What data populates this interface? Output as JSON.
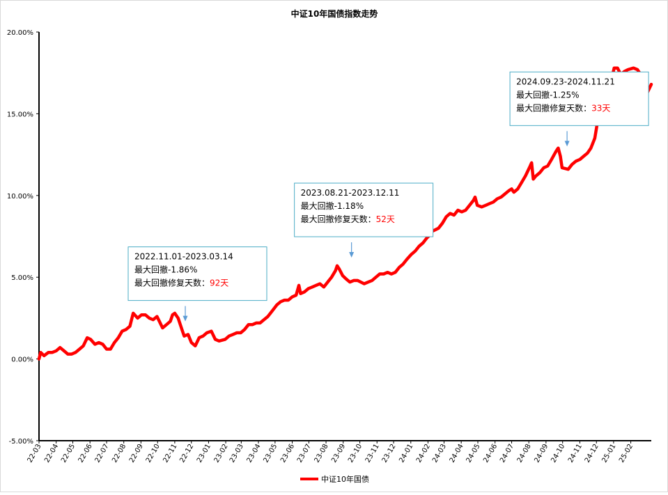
{
  "chart_data": {
    "type": "line",
    "title": "中证10年国债指数走势",
    "xlabel": "",
    "ylabel": "",
    "ylim": [
      -0.05,
      0.2
    ],
    "y_ticks": [
      "-5.00%",
      "0.00%",
      "5.00%",
      "10.00%",
      "15.00%",
      "20.00%"
    ],
    "y_tick_values": [
      -0.05,
      0.0,
      0.05,
      0.1,
      0.15,
      0.2
    ],
    "x_ticks": [
      "22-03",
      "22-04",
      "22-05",
      "22-06",
      "22-07",
      "22-08",
      "22-09",
      "22-10",
      "22-11",
      "22-12",
      "23-01",
      "23-02",
      "23-03",
      "23-04",
      "23-05",
      "23-06",
      "23-07",
      "23-08",
      "23-09",
      "23-10",
      "23-11",
      "23-12",
      "24-01",
      "24-02",
      "24-03",
      "24-04",
      "24-05",
      "24-06",
      "24-07",
      "24-08",
      "24-09",
      "24-10",
      "24-11",
      "24-12",
      "25-01",
      "25-02"
    ],
    "x_start": "2022-03-01",
    "x_end": "2025-03-10",
    "grid": false,
    "legend_position": "bottom",
    "series": [
      {
        "name": "中证10年国债",
        "color": "#ff0000",
        "points": [
          [
            "2022-03-01",
            0.0
          ],
          [
            "2022-03-04",
            0.004
          ],
          [
            "2022-03-10",
            0.002
          ],
          [
            "2022-03-18",
            0.004
          ],
          [
            "2022-03-25",
            0.004
          ],
          [
            "2022-04-01",
            0.005
          ],
          [
            "2022-04-08",
            0.007
          ],
          [
            "2022-04-15",
            0.005
          ],
          [
            "2022-04-22",
            0.003
          ],
          [
            "2022-04-29",
            0.003
          ],
          [
            "2022-05-06",
            0.004
          ],
          [
            "2022-05-13",
            0.006
          ],
          [
            "2022-05-20",
            0.008
          ],
          [
            "2022-05-27",
            0.013
          ],
          [
            "2022-06-02",
            0.012
          ],
          [
            "2022-06-10",
            0.009
          ],
          [
            "2022-06-17",
            0.01
          ],
          [
            "2022-06-24",
            0.009
          ],
          [
            "2022-07-01",
            0.006
          ],
          [
            "2022-07-08",
            0.006
          ],
          [
            "2022-07-15",
            0.01
          ],
          [
            "2022-07-22",
            0.013
          ],
          [
            "2022-07-29",
            0.017
          ],
          [
            "2022-08-05",
            0.018
          ],
          [
            "2022-08-12",
            0.02
          ],
          [
            "2022-08-18",
            0.028
          ],
          [
            "2022-08-26",
            0.025
          ],
          [
            "2022-09-02",
            0.027
          ],
          [
            "2022-09-09",
            0.027
          ],
          [
            "2022-09-16",
            0.025
          ],
          [
            "2022-09-23",
            0.024
          ],
          [
            "2022-09-30",
            0.026
          ],
          [
            "2022-10-10",
            0.019
          ],
          [
            "2022-10-17",
            0.021
          ],
          [
            "2022-10-24",
            0.023
          ],
          [
            "2022-10-28",
            0.027
          ],
          [
            "2022-11-01",
            0.028
          ],
          [
            "2022-11-07",
            0.025
          ],
          [
            "2022-11-14",
            0.018
          ],
          [
            "2022-11-18",
            0.014
          ],
          [
            "2022-11-25",
            0.015
          ],
          [
            "2022-12-01",
            0.01
          ],
          [
            "2022-12-08",
            0.008
          ],
          [
            "2022-12-15",
            0.013
          ],
          [
            "2022-12-22",
            0.014
          ],
          [
            "2022-12-29",
            0.016
          ],
          [
            "2023-01-06",
            0.017
          ],
          [
            "2023-01-13",
            0.012
          ],
          [
            "2023-01-20",
            0.011
          ],
          [
            "2023-01-31",
            0.012
          ],
          [
            "2023-02-07",
            0.014
          ],
          [
            "2023-02-14",
            0.015
          ],
          [
            "2023-02-21",
            0.016
          ],
          [
            "2023-02-28",
            0.016
          ],
          [
            "2023-03-07",
            0.018
          ],
          [
            "2023-03-14",
            0.021
          ],
          [
            "2023-03-21",
            0.021
          ],
          [
            "2023-03-28",
            0.022
          ],
          [
            "2023-04-04",
            0.022
          ],
          [
            "2023-04-11",
            0.024
          ],
          [
            "2023-04-18",
            0.026
          ],
          [
            "2023-04-25",
            0.029
          ],
          [
            "2023-05-04",
            0.033
          ],
          [
            "2023-05-11",
            0.035
          ],
          [
            "2023-05-18",
            0.036
          ],
          [
            "2023-05-25",
            0.036
          ],
          [
            "2023-06-01",
            0.038
          ],
          [
            "2023-06-08",
            0.039
          ],
          [
            "2023-06-13",
            0.045
          ],
          [
            "2023-06-16",
            0.04
          ],
          [
            "2023-06-23",
            0.041
          ],
          [
            "2023-06-30",
            0.043
          ],
          [
            "2023-07-07",
            0.044
          ],
          [
            "2023-07-14",
            0.045
          ],
          [
            "2023-07-21",
            0.046
          ],
          [
            "2023-07-28",
            0.044
          ],
          [
            "2023-08-04",
            0.047
          ],
          [
            "2023-08-11",
            0.05
          ],
          [
            "2023-08-18",
            0.054
          ],
          [
            "2023-08-21",
            0.057
          ],
          [
            "2023-08-25",
            0.055
          ],
          [
            "2023-08-31",
            0.051
          ],
          [
            "2023-09-06",
            0.049
          ],
          [
            "2023-09-13",
            0.047
          ],
          [
            "2023-09-20",
            0.048
          ],
          [
            "2023-09-27",
            0.048
          ],
          [
            "2023-10-09",
            0.046
          ],
          [
            "2023-10-16",
            0.047
          ],
          [
            "2023-10-23",
            0.048
          ],
          [
            "2023-10-30",
            0.05
          ],
          [
            "2023-11-06",
            0.052
          ],
          [
            "2023-11-13",
            0.052
          ],
          [
            "2023-11-20",
            0.053
          ],
          [
            "2023-11-27",
            0.052
          ],
          [
            "2023-12-04",
            0.053
          ],
          [
            "2023-12-11",
            0.056
          ],
          [
            "2023-12-18",
            0.058
          ],
          [
            "2023-12-25",
            0.061
          ],
          [
            "2024-01-02",
            0.064
          ],
          [
            "2024-01-09",
            0.066
          ],
          [
            "2024-01-16",
            0.069
          ],
          [
            "2024-01-23",
            0.071
          ],
          [
            "2024-01-30",
            0.074
          ],
          [
            "2024-02-05",
            0.076
          ],
          [
            "2024-02-08",
            0.078
          ],
          [
            "2024-02-20",
            0.08
          ],
          [
            "2024-02-27",
            0.083
          ],
          [
            "2024-03-05",
            0.087
          ],
          [
            "2024-03-12",
            0.089
          ],
          [
            "2024-03-19",
            0.088
          ],
          [
            "2024-03-26",
            0.091
          ],
          [
            "2024-04-02",
            0.09
          ],
          [
            "2024-04-09",
            0.091
          ],
          [
            "2024-04-16",
            0.094
          ],
          [
            "2024-04-23",
            0.097
          ],
          [
            "2024-04-26",
            0.099
          ],
          [
            "2024-04-30",
            0.094
          ],
          [
            "2024-05-08",
            0.093
          ],
          [
            "2024-05-15",
            0.094
          ],
          [
            "2024-05-22",
            0.095
          ],
          [
            "2024-05-29",
            0.096
          ],
          [
            "2024-06-05",
            0.098
          ],
          [
            "2024-06-12",
            0.099
          ],
          [
            "2024-06-19",
            0.101
          ],
          [
            "2024-06-26",
            0.103
          ],
          [
            "2024-07-01",
            0.104
          ],
          [
            "2024-07-05",
            0.102
          ],
          [
            "2024-07-12",
            0.104
          ],
          [
            "2024-07-19",
            0.108
          ],
          [
            "2024-07-26",
            0.112
          ],
          [
            "2024-08-02",
            0.117
          ],
          [
            "2024-08-06",
            0.12
          ],
          [
            "2024-08-09",
            0.11
          ],
          [
            "2024-08-14",
            0.112
          ],
          [
            "2024-08-21",
            0.114
          ],
          [
            "2024-08-28",
            0.117
          ],
          [
            "2024-09-04",
            0.118
          ],
          [
            "2024-09-11",
            0.122
          ],
          [
            "2024-09-19",
            0.127
          ],
          [
            "2024-09-23",
            0.129
          ],
          [
            "2024-09-27",
            0.124
          ],
          [
            "2024-09-30",
            0.117
          ],
          [
            "2024-10-11",
            0.116
          ],
          [
            "2024-10-18",
            0.119
          ],
          [
            "2024-10-25",
            0.121
          ],
          [
            "2024-11-01",
            0.122
          ],
          [
            "2024-11-08",
            0.124
          ],
          [
            "2024-11-15",
            0.126
          ],
          [
            "2024-11-21",
            0.129
          ],
          [
            "2024-11-28",
            0.135
          ],
          [
            "2024-12-03",
            0.145
          ],
          [
            "2024-12-06",
            0.152
          ],
          [
            "2024-12-10",
            0.16
          ],
          [
            "2024-12-16",
            0.165
          ],
          [
            "2024-12-23",
            0.167
          ],
          [
            "2024-12-27",
            0.169
          ],
          [
            "2025-01-02",
            0.178
          ],
          [
            "2025-01-08",
            0.178
          ],
          [
            "2025-01-14",
            0.174
          ],
          [
            "2025-01-21",
            0.176
          ],
          [
            "2025-01-27",
            0.177
          ],
          [
            "2025-02-06",
            0.178
          ],
          [
            "2025-02-13",
            0.177
          ],
          [
            "2025-02-19",
            0.174
          ],
          [
            "2025-02-26",
            0.167
          ],
          [
            "2025-03-03",
            0.163
          ],
          [
            "2025-03-10",
            0.168
          ]
        ]
      }
    ],
    "annotations": [
      {
        "period": "2022.11.01-2023.03.14",
        "drawdown_label": "最大回撤-1.86%",
        "repair_label": "最大回撤修复天数：",
        "repair_days": "92天",
        "arrow_date": "2022-11-20",
        "arrow_value": 0.023
      },
      {
        "period": "2023.08.21-2023.12.11",
        "drawdown_label": "最大回撤-1.18%",
        "repair_label": "最大回撤修复天数：",
        "repair_days": "52天",
        "arrow_date": "2023-09-16",
        "arrow_value": 0.062
      },
      {
        "period": "2024.09.23-2024.11.21",
        "drawdown_label": "最大回撤-1.25%",
        "repair_label": "最大回撤修复天数：",
        "repair_days": "33天",
        "arrow_date": "2024-10-09",
        "arrow_value": 0.13
      }
    ],
    "colors": {
      "line": "#ff0000",
      "axis": "#000000",
      "callout_border": "#4bacc6",
      "callout_arrow": "#5b9bd5",
      "highlight_text": "#ff0000"
    }
  }
}
